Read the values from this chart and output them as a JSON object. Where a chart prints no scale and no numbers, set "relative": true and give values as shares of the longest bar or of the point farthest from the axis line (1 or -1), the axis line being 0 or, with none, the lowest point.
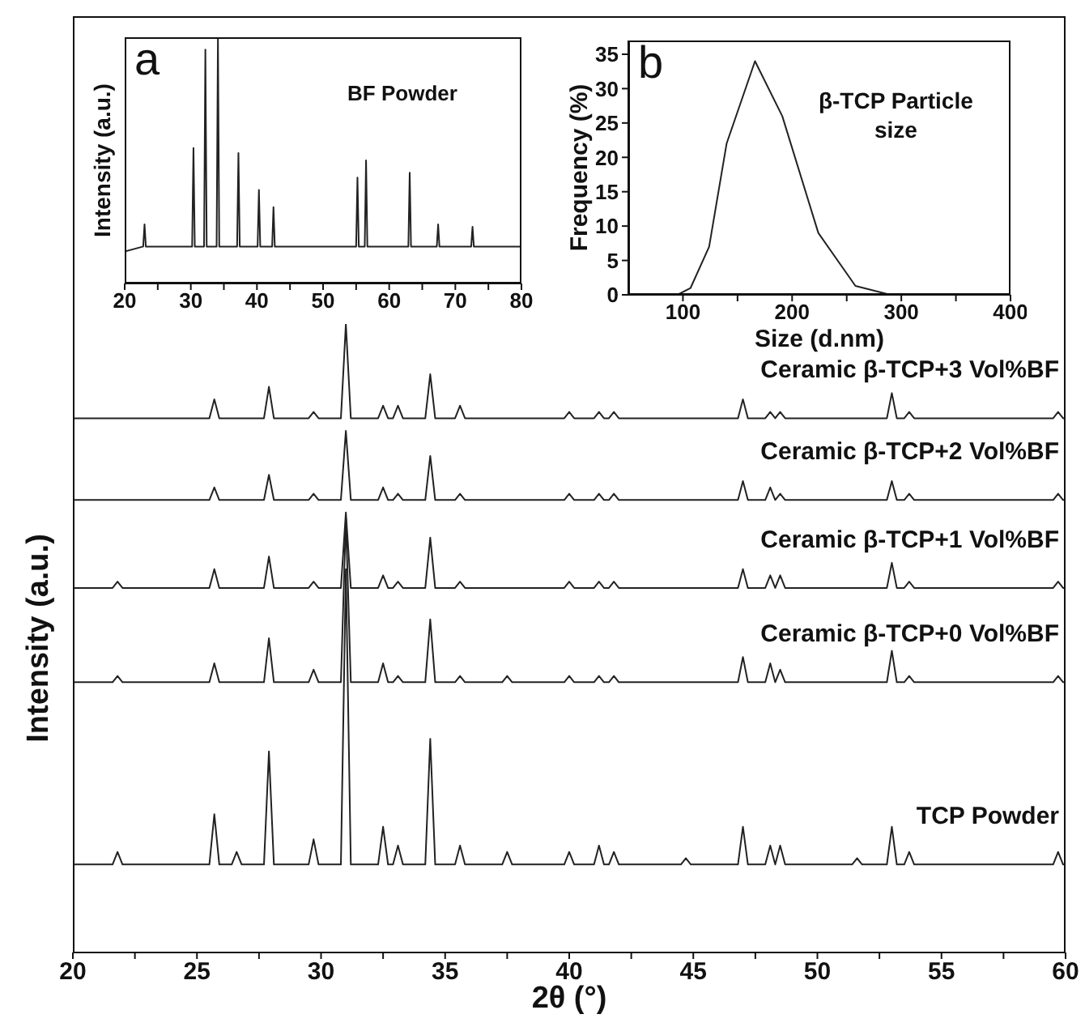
{
  "chart_data": [
    {
      "type": "line",
      "relative": true,
      "xlabel": "2θ (°)",
      "ylabel": "Intensity (a.u.)",
      "xlim": [
        20,
        60
      ],
      "xticks": [
        20,
        {
          "value": 22.5,
          "label": null
        },
        25,
        {
          "value": 27.5,
          "label": null
        },
        30,
        {
          "value": 32.5,
          "label": null
        },
        35,
        {
          "value": 37.5,
          "label": null
        },
        40,
        {
          "value": 42.5,
          "label": null
        },
        45,
        {
          "value": 47.5,
          "label": null
        },
        50,
        {
          "value": 52.5,
          "label": null
        },
        55,
        {
          "value": 57.5,
          "label": null
        },
        60
      ],
      "x": [
        20,
        21.6,
        21.8,
        22,
        25.5,
        25.7,
        25.9,
        26.4,
        26.6,
        26.8,
        27.7,
        27.9,
        28.1,
        29.5,
        29.7,
        29.9,
        30.8,
        31,
        31.2,
        32.3,
        32.5,
        32.7,
        32.9,
        33.1,
        33.3,
        34.2,
        34.4,
        34.6,
        35.4,
        35.6,
        35.8,
        37.3,
        37.5,
        37.7,
        39.8,
        40,
        40.2,
        41,
        41.2,
        41.4,
        41.6,
        41.8,
        42,
        44.5,
        44.7,
        44.9,
        46.8,
        47,
        47.2,
        47.9,
        48.1,
        48.3,
        48.5,
        48.7,
        51.4,
        51.6,
        51.8,
        52.8,
        53,
        53.2,
        53.5,
        53.7,
        53.9,
        59.5,
        59.7,
        59.9,
        60
      ],
      "series": [
        {
          "name": "Ceramic β-TCP+3 Vol%BF",
          "color": "#222222",
          "values": [
            0.85,
            0.85,
            0.85,
            0.85,
            0.85,
            0.88,
            0.85,
            0.85,
            0.85,
            0.85,
            0.85,
            0.9,
            0.85,
            0.85,
            0.86,
            0.85,
            0.85,
            1,
            0.85,
            0.85,
            0.87,
            0.85,
            0.85,
            0.87,
            0.85,
            0.85,
            0.92,
            0.85,
            0.85,
            0.87,
            0.85,
            0.85,
            0.85,
            0.85,
            0.85,
            0.86,
            0.85,
            0.85,
            0.86,
            0.85,
            0.85,
            0.86,
            0.85,
            0.85,
            0.85,
            0.85,
            0.85,
            0.88,
            0.85,
            0.85,
            0.86,
            0.85,
            0.86,
            0.85,
            0.85,
            0.85,
            0.85,
            0.85,
            0.89,
            0.85,
            0.85,
            0.86,
            0.85,
            0.85,
            0.86,
            0.85,
            0.85
          ]
        },
        {
          "name": "Ceramic β-TCP+2 Vol%BF",
          "color": "#222222",
          "values": [
            0.72,
            0.72,
            0.72,
            0.72,
            0.72,
            0.74,
            0.72,
            0.72,
            0.72,
            0.72,
            0.72,
            0.76,
            0.72,
            0.72,
            0.73,
            0.72,
            0.72,
            0.83,
            0.72,
            0.72,
            0.74,
            0.72,
            0.72,
            0.73,
            0.72,
            0.72,
            0.79,
            0.72,
            0.72,
            0.73,
            0.72,
            0.72,
            0.72,
            0.72,
            0.72,
            0.73,
            0.72,
            0.72,
            0.73,
            0.72,
            0.72,
            0.73,
            0.72,
            0.72,
            0.72,
            0.72,
            0.72,
            0.75,
            0.72,
            0.72,
            0.74,
            0.72,
            0.73,
            0.72,
            0.72,
            0.72,
            0.72,
            0.72,
            0.75,
            0.72,
            0.72,
            0.73,
            0.72,
            0.72,
            0.73,
            0.72,
            0.72
          ]
        },
        {
          "name": "Ceramic β-TCP+1 Vol%BF",
          "color": "#222222",
          "values": [
            0.58,
            0.58,
            0.59,
            0.58,
            0.58,
            0.61,
            0.58,
            0.58,
            0.58,
            0.58,
            0.58,
            0.63,
            0.58,
            0.58,
            0.59,
            0.58,
            0.58,
            0.7,
            0.58,
            0.58,
            0.6,
            0.58,
            0.58,
            0.59,
            0.58,
            0.58,
            0.66,
            0.58,
            0.58,
            0.59,
            0.58,
            0.58,
            0.58,
            0.58,
            0.58,
            0.59,
            0.58,
            0.58,
            0.59,
            0.58,
            0.58,
            0.59,
            0.58,
            0.58,
            0.58,
            0.58,
            0.58,
            0.61,
            0.58,
            0.58,
            0.6,
            0.58,
            0.6,
            0.58,
            0.58,
            0.58,
            0.58,
            0.58,
            0.62,
            0.58,
            0.58,
            0.59,
            0.58,
            0.58,
            0.59,
            0.58,
            0.58
          ]
        },
        {
          "name": "Ceramic β-TCP+0 Vol%BF",
          "color": "#222222",
          "values": [
            0.43,
            0.43,
            0.44,
            0.43,
            0.43,
            0.46,
            0.43,
            0.43,
            0.43,
            0.43,
            0.43,
            0.5,
            0.43,
            0.43,
            0.45,
            0.43,
            0.43,
            0.69,
            0.43,
            0.43,
            0.46,
            0.43,
            0.43,
            0.44,
            0.43,
            0.43,
            0.53,
            0.43,
            0.43,
            0.44,
            0.43,
            0.43,
            0.44,
            0.43,
            0.43,
            0.44,
            0.43,
            0.43,
            0.44,
            0.43,
            0.43,
            0.44,
            0.43,
            0.43,
            0.43,
            0.43,
            0.43,
            0.47,
            0.43,
            0.43,
            0.46,
            0.43,
            0.45,
            0.43,
            0.43,
            0.43,
            0.43,
            0.43,
            0.48,
            0.43,
            0.43,
            0.44,
            0.43,
            0.43,
            0.44,
            0.43,
            0.43
          ]
        },
        {
          "name": "TCP Powder",
          "color": "#222222",
          "values": [
            0.14,
            0.14,
            0.16,
            0.14,
            0.14,
            0.22,
            0.14,
            0.14,
            0.16,
            0.14,
            0.14,
            0.32,
            0.14,
            0.14,
            0.18,
            0.14,
            0.14,
            0.61,
            0.14,
            0.14,
            0.2,
            0.14,
            0.14,
            0.17,
            0.14,
            0.14,
            0.34,
            0.14,
            0.14,
            0.17,
            0.14,
            0.14,
            0.16,
            0.14,
            0.14,
            0.16,
            0.14,
            0.14,
            0.17,
            0.14,
            0.14,
            0.16,
            0.14,
            0.14,
            0.15,
            0.14,
            0.14,
            0.2,
            0.14,
            0.14,
            0.17,
            0.14,
            0.17,
            0.14,
            0.14,
            0.15,
            0.14,
            0.14,
            0.2,
            0.14,
            0.14,
            0.16,
            0.14,
            0.14,
            0.16,
            0.14,
            0.14
          ]
        }
      ]
    },
    {
      "type": "line",
      "relative": true,
      "ylabel": "Intensity (a.u.)",
      "annotations": [
        "a",
        "BF  Powder"
      ],
      "xlim": [
        20,
        80
      ],
      "xticks": [
        20,
        {
          "value": 25,
          "label": null
        },
        30,
        {
          "value": 35,
          "label": null
        },
        40,
        {
          "value": 45,
          "label": null
        },
        50,
        {
          "value": 55,
          "label": null
        },
        60,
        {
          "value": 65,
          "label": null
        },
        70,
        {
          "value": 75,
          "label": null
        },
        80
      ],
      "x": [
        20,
        22.8,
        23,
        23.2,
        30.2,
        30.4,
        30.6,
        32,
        32.2,
        32.4,
        33.9,
        34.1,
        34.3,
        37,
        37.2,
        37.4,
        40.1,
        40.3,
        40.5,
        42.3,
        42.5,
        42.7,
        55,
        55.2,
        55.4,
        56.3,
        56.5,
        56.7,
        62.9,
        63.1,
        63.3,
        67.2,
        67.4,
        67.6,
        72.4,
        72.6,
        72.8,
        80
      ],
      "series": [
        {
          "color": "#222222",
          "values": [
            0.13,
            0.15,
            0.24,
            0.15,
            0.15,
            0.55,
            0.15,
            0.15,
            0.95,
            0.15,
            0.15,
            1,
            0.15,
            0.15,
            0.53,
            0.15,
            0.15,
            0.38,
            0.15,
            0.15,
            0.31,
            0.15,
            0.15,
            0.43,
            0.15,
            0.15,
            0.5,
            0.15,
            0.15,
            0.45,
            0.15,
            0.15,
            0.24,
            0.15,
            0.15,
            0.23,
            0.15,
            0.15
          ]
        }
      ]
    },
    {
      "type": "line",
      "xlabel": "Size (d.nm)",
      "ylabel": "Frequency (%)",
      "annotations": [
        "b",
        "β-TCP Particle size"
      ],
      "xlim": [
        50,
        400
      ],
      "xticks": [
        100,
        {
          "value": 150,
          "label": null
        },
        200,
        {
          "value": 250,
          "label": null
        },
        300,
        {
          "value": 350,
          "label": null
        },
        400
      ],
      "ylim": [
        0,
        37
      ],
      "yticks": [
        0,
        5,
        10,
        15,
        20,
        25,
        30,
        35
      ],
      "x": [
        95,
        107,
        124,
        140,
        166,
        191,
        224,
        258,
        290
      ],
      "series": [
        {
          "color": "#222222",
          "values": [
            0,
            1,
            7,
            22,
            34,
            26,
            9,
            1.3,
            0
          ]
        }
      ]
    }
  ]
}
